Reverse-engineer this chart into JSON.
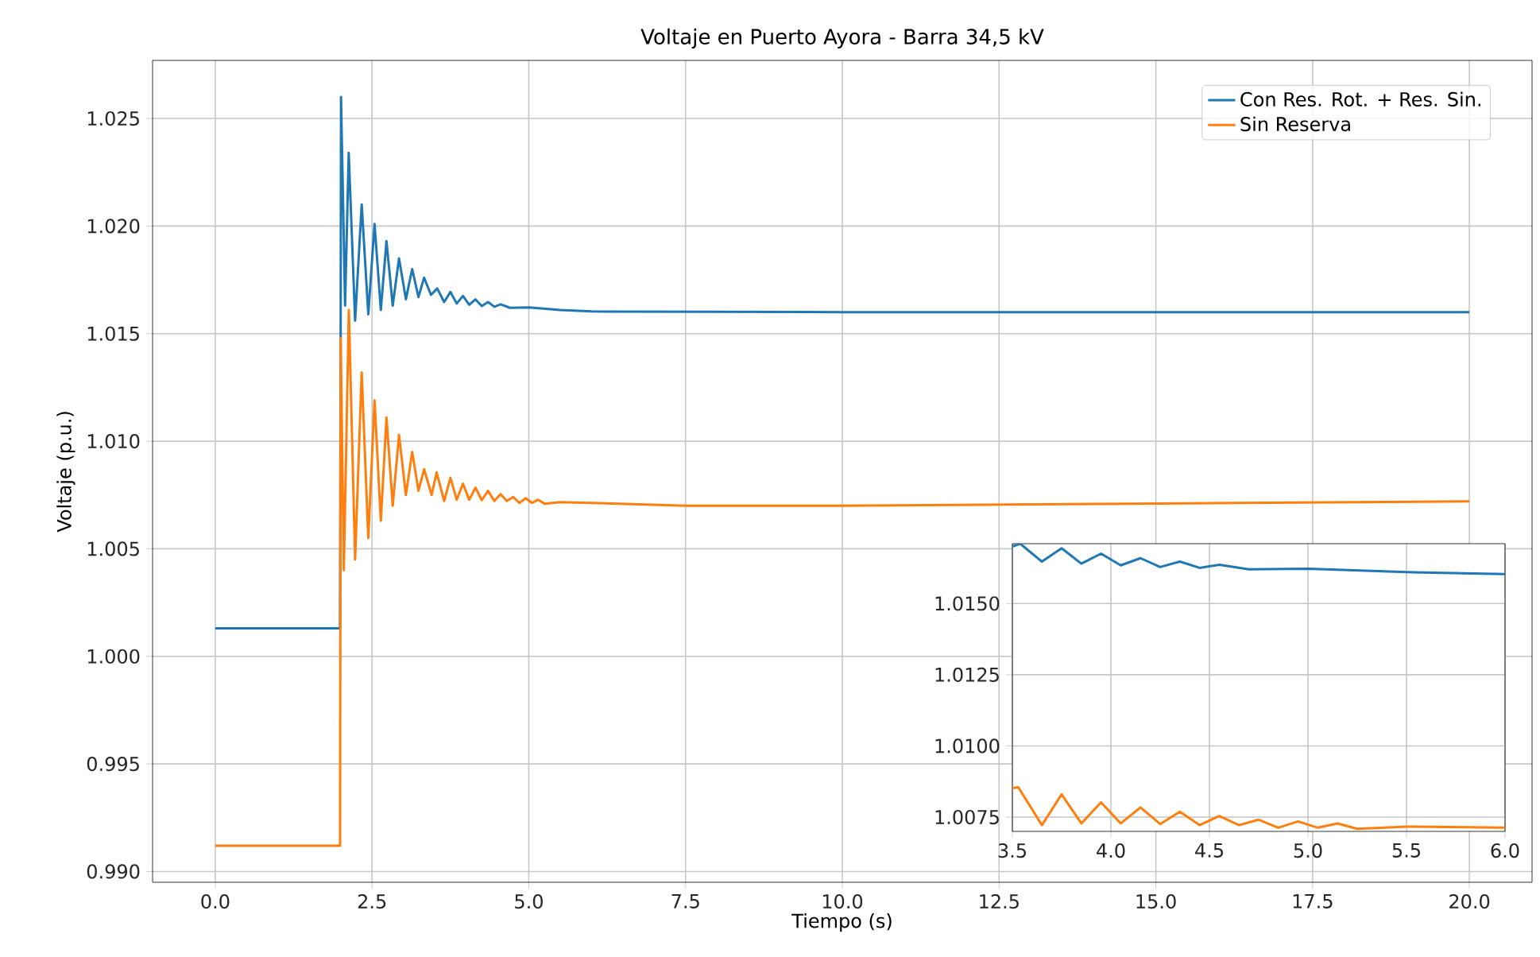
{
  "chart_data": [
    {
      "type": "line",
      "title": "Voltaje en Puerto Ayora - Barra 34,5 kV",
      "xlabel": "Tiempo (s)",
      "ylabel": "Voltaje (p.u.)",
      "xlim": [
        -1,
        21
      ],
      "ylim": [
        0.9895,
        1.0277
      ],
      "xticks": [
        {
          "value": 0,
          "label": "0.0"
        },
        {
          "value": 2.5,
          "label": "2.5"
        },
        {
          "value": 5,
          "label": "5.0"
        },
        {
          "value": 7.5,
          "label": "7.5"
        },
        {
          "value": 10,
          "label": "10.0"
        },
        {
          "value": 12.5,
          "label": "12.5"
        },
        {
          "value": 15,
          "label": "15.0"
        },
        {
          "value": 17.5,
          "label": "17.5"
        },
        {
          "value": 20,
          "label": "20.0"
        }
      ],
      "yticks": [
        {
          "value": 0.99,
          "label": "0.990"
        },
        {
          "value": 0.995,
          "label": "0.995"
        },
        {
          "value": 1.0,
          "label": "1.000"
        },
        {
          "value": 1.005,
          "label": "1.005"
        },
        {
          "value": 1.01,
          "label": "1.010"
        },
        {
          "value": 1.015,
          "label": "1.015"
        },
        {
          "value": 1.02,
          "label": "1.020"
        },
        {
          "value": 1.025,
          "label": "1.025"
        }
      ],
      "grid": true,
      "legend": "top right",
      "marker": "none",
      "line_style": "solid",
      "series": [
        {
          "name": "Con Res. Rot. + Res. Sin.",
          "color": "#1f77b4",
          "x": [
            0,
            1.99,
            2.0,
            2.005,
            2.07,
            2.128,
            2.23,
            2.335,
            2.44,
            2.54,
            2.64,
            2.73,
            2.83,
            2.93,
            3.04,
            3.14,
            3.24,
            3.33,
            3.44,
            3.54,
            3.65,
            3.75,
            3.85,
            3.95,
            4.05,
            4.15,
            4.25,
            4.35,
            4.45,
            4.55,
            4.7,
            5.0,
            5.5,
            6.0,
            10,
            15,
            20
          ],
          "values": [
            1.0013,
            1.0013,
            1.0162,
            1.026,
            1.0163,
            1.0234,
            1.0156,
            1.021,
            1.0159,
            1.0201,
            1.0161,
            1.0193,
            1.0163,
            1.0185,
            1.0166,
            1.018,
            1.0167,
            1.0176,
            1.0168,
            1.0171,
            1.01647,
            1.01694,
            1.0164,
            1.01675,
            1.01634,
            1.01659,
            1.01628,
            1.01647,
            1.01625,
            1.01636,
            1.0162,
            1.01622,
            1.0161,
            1.01603,
            1.016,
            1.016,
            1.016
          ]
        },
        {
          "name": "Sin Reserva",
          "color": "#ff7f0e",
          "x": [
            0,
            1.99,
            2.0,
            2.05,
            2.13,
            2.23,
            2.335,
            2.44,
            2.54,
            2.64,
            2.73,
            2.83,
            2.93,
            3.04,
            3.14,
            3.24,
            3.33,
            3.45,
            3.53,
            3.65,
            3.75,
            3.85,
            3.95,
            4.05,
            4.15,
            4.25,
            4.35,
            4.45,
            4.55,
            4.65,
            4.75,
            4.85,
            4.95,
            5.05,
            5.15,
            5.25,
            5.5,
            6.0,
            7.5,
            10,
            15,
            20
          ],
          "values": [
            0.9912,
            0.9912,
            1.0148,
            1.004,
            1.0161,
            1.0045,
            1.0132,
            1.0055,
            1.0119,
            1.0063,
            1.0111,
            1.007,
            1.0103,
            1.0075,
            1.0095,
            1.0077,
            1.0087,
            1.0075,
            1.00855,
            1.00722,
            1.0083,
            1.00728,
            1.00802,
            1.00728,
            1.00784,
            1.00726,
            1.00769,
            1.00722,
            1.00754,
            1.00722,
            1.00741,
            1.00713,
            1.00735,
            1.00713,
            1.00728,
            1.00709,
            1.00717,
            1.00713,
            1.007,
            1.007,
            1.0071,
            1.0072
          ]
        }
      ]
    },
    {
      "type": "line",
      "xlim": [
        3.5,
        6.0
      ],
      "ylim": [
        1.007,
        1.0171
      ],
      "xticks": [
        {
          "value": 3.5,
          "label": "3.5"
        },
        {
          "value": 4,
          "label": "4.0"
        },
        {
          "value": 4.5,
          "label": "4.5"
        },
        {
          "value": 5,
          "label": "5.0"
        },
        {
          "value": 5.5,
          "label": "5.5"
        },
        {
          "value": 6,
          "label": "6.0"
        }
      ],
      "yticks": [
        {
          "value": 1.0075,
          "label": "1.0075"
        },
        {
          "value": 1.01,
          "label": "1.0100"
        },
        {
          "value": 1.0125,
          "label": "1.0125"
        },
        {
          "value": 1.015,
          "label": "1.0150"
        }
      ],
      "grid": true,
      "marker": "none",
      "line_style": "solid",
      "series": [
        {
          "color": "#1f77b4",
          "x": [
            3.5,
            3.54,
            3.65,
            3.75,
            3.85,
            3.95,
            4.05,
            4.15,
            4.25,
            4.35,
            4.45,
            4.55,
            4.7,
            5.0,
            5.5,
            6.0
          ],
          "values": [
            1.017,
            1.0171,
            1.01647,
            1.01694,
            1.0164,
            1.01675,
            1.01634,
            1.01659,
            1.01628,
            1.01647,
            1.01625,
            1.01636,
            1.0162,
            1.01622,
            1.0161,
            1.01603
          ]
        },
        {
          "color": "#ff7f0e",
          "x": [
            3.5,
            3.53,
            3.65,
            3.75,
            3.85,
            3.95,
            4.05,
            4.15,
            4.25,
            4.35,
            4.45,
            4.55,
            4.65,
            4.75,
            4.85,
            4.95,
            5.05,
            5.15,
            5.25,
            5.5,
            6.0
          ],
          "values": [
            1.00852,
            1.00855,
            1.00722,
            1.0083,
            1.00728,
            1.00802,
            1.00728,
            1.00784,
            1.00726,
            1.00769,
            1.00722,
            1.00754,
            1.00722,
            1.00741,
            1.00713,
            1.00735,
            1.00713,
            1.00728,
            1.00709,
            1.00717,
            1.00713
          ]
        }
      ]
    }
  ]
}
